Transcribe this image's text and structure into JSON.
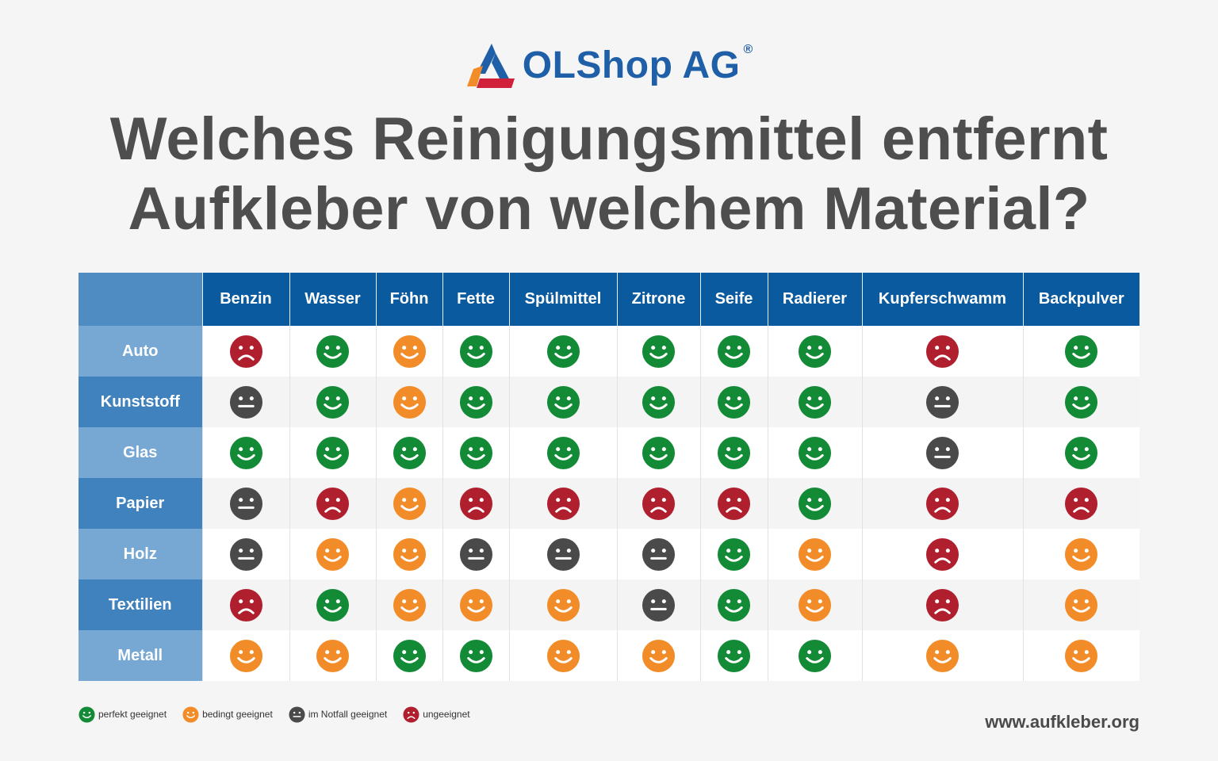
{
  "brand": {
    "name": "OLShop AG",
    "registered_mark": "®",
    "colors": {
      "blue": "#1f5fa8",
      "orange": "#f28c28",
      "red": "#d1203a"
    }
  },
  "title": {
    "line1": "Welches Reinigungsmittel entfernt",
    "line2": "Aufkleber von welchem Material?"
  },
  "table": {
    "columns": [
      "Benzin",
      "Wasser",
      "Föhn",
      "Fette",
      "Spülmittel",
      "Zitrone",
      "Seife",
      "Radierer",
      "Kupferschwamm",
      "Backpulver"
    ],
    "rows": [
      {
        "label": "Auto",
        "ratings": [
          "sad",
          "happy",
          "okay",
          "happy",
          "happy",
          "happy",
          "happy",
          "happy",
          "sad",
          "happy"
        ]
      },
      {
        "label": "Kunststoff",
        "ratings": [
          "neutral",
          "happy",
          "okay",
          "happy",
          "happy",
          "happy",
          "happy",
          "happy",
          "neutral",
          "happy"
        ]
      },
      {
        "label": "Glas",
        "ratings": [
          "happy",
          "happy",
          "happy",
          "happy",
          "happy",
          "happy",
          "happy",
          "happy",
          "neutral",
          "happy"
        ]
      },
      {
        "label": "Papier",
        "ratings": [
          "neutral",
          "sad",
          "okay",
          "sad",
          "sad",
          "sad",
          "sad",
          "happy",
          "sad",
          "sad"
        ]
      },
      {
        "label": "Holz",
        "ratings": [
          "neutral",
          "okay",
          "okay",
          "neutral",
          "neutral",
          "neutral",
          "happy",
          "okay",
          "sad",
          "okay"
        ]
      },
      {
        "label": "Textilien",
        "ratings": [
          "sad",
          "happy",
          "okay",
          "okay",
          "okay",
          "neutral",
          "happy",
          "okay",
          "sad",
          "okay"
        ]
      },
      {
        "label": "Metall",
        "ratings": [
          "okay",
          "okay",
          "happy",
          "happy",
          "okay",
          "okay",
          "happy",
          "happy",
          "okay",
          "okay"
        ]
      }
    ]
  },
  "rating_styles": {
    "happy": {
      "color": "#138a36",
      "mouth": "smile"
    },
    "okay": {
      "color": "#f28c28",
      "mouth": "smile"
    },
    "neutral": {
      "color": "#4a4a4a",
      "mouth": "flat"
    },
    "sad": {
      "color": "#b01f2e",
      "mouth": "frown"
    }
  },
  "legend": [
    {
      "rating": "happy",
      "label": "perfekt geeignet"
    },
    {
      "rating": "okay",
      "label": "bedingt geeignet"
    },
    {
      "rating": "neutral",
      "label": "im Notfall geeignet"
    },
    {
      "rating": "sad",
      "label": "ungeeignet"
    }
  ],
  "footer": {
    "website": "www.aufkleber.org"
  }
}
